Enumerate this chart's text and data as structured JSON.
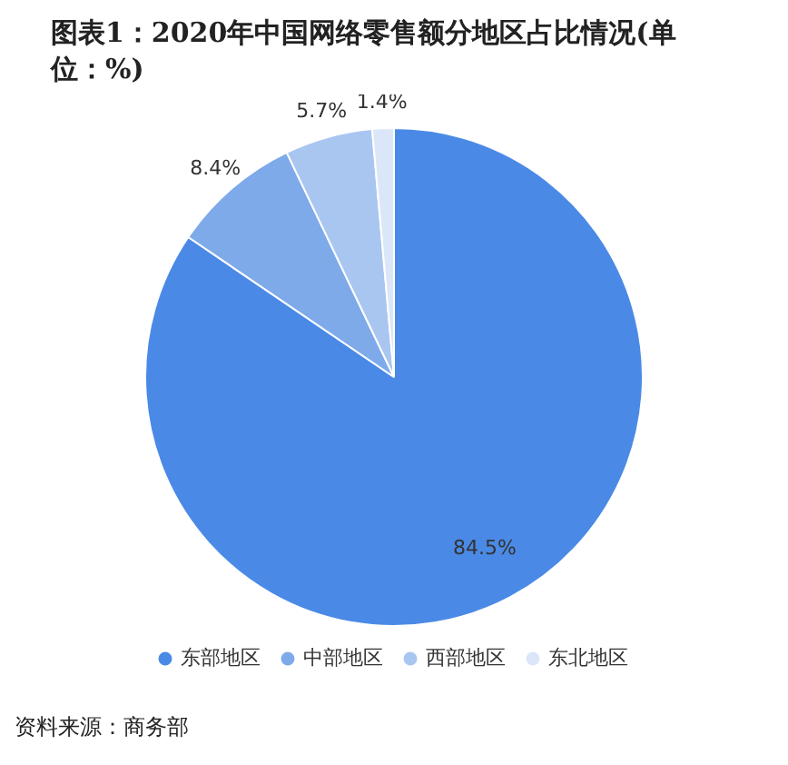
{
  "chart_data": {
    "type": "pie",
    "title": "图表1：2020年中国网络零售额分地区占比情况(单位：%)",
    "categories": [
      "东部地区",
      "中部地区",
      "西部地区",
      "东北地区"
    ],
    "values": [
      84.5,
      8.4,
      5.7,
      1.4
    ],
    "colors": [
      "#4a8ae6",
      "#7eaaea",
      "#a9c6f1",
      "#dbe7f8"
    ],
    "value_labels": [
      "84.5%",
      "8.4%",
      "5.7%",
      "1.4%"
    ],
    "legend": "bottom",
    "annotations": [
      "资料来源：商务部"
    ]
  }
}
